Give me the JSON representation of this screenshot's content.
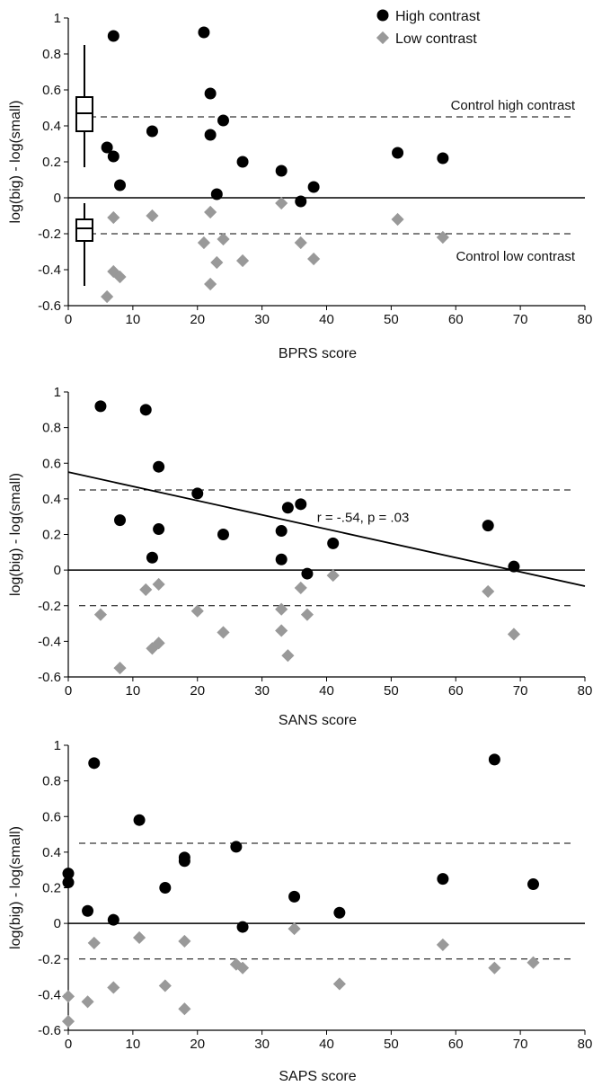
{
  "legend": {
    "high_label": "High contrast",
    "low_label": "Low contrast"
  },
  "colors": {
    "high": "#000000",
    "low": "#999999"
  },
  "chart_data": [
    {
      "type": "scatter",
      "xlabel": "BPRS score",
      "ylabel": "log(big) - log(small)",
      "xlim": [
        0,
        80
      ],
      "ylim": [
        -0.6,
        1
      ],
      "xticks": [
        "0",
        "10",
        "20",
        "30",
        "40",
        "50",
        "60",
        "70",
        "80"
      ],
      "yticks": [
        "-0.6",
        "-0.4",
        "-0.2",
        "0",
        "0.2",
        "0.4",
        "0.6",
        "0.8",
        "1"
      ],
      "reference_lines": [
        {
          "label": "Control high contrast",
          "y": 0.45
        },
        {
          "label": "Control low contrast",
          "y": -0.2
        }
      ],
      "boxplots": [
        {
          "name": "Control high contrast",
          "x": 2.5,
          "min": 0.17,
          "q1": 0.37,
          "median": 0.47,
          "q3": 0.56,
          "max": 0.85
        },
        {
          "name": "Control low contrast",
          "x": 2.5,
          "min": -0.49,
          "q1": -0.24,
          "median": -0.17,
          "q3": -0.12,
          "max": -0.03
        }
      ],
      "series": [
        {
          "name": "High contrast",
          "marker": "circle",
          "points": [
            [
              6,
              0.28
            ],
            [
              7,
              0.23
            ],
            [
              7,
              0.9
            ],
            [
              8,
              0.07
            ],
            [
              13,
              0.37
            ],
            [
              21,
              0.92
            ],
            [
              22,
              0.58
            ],
            [
              22,
              0.35
            ],
            [
              23,
              0.02
            ],
            [
              24,
              0.43
            ],
            [
              27,
              0.2
            ],
            [
              33,
              0.15
            ],
            [
              36,
              -0.02
            ],
            [
              38,
              0.06
            ],
            [
              51,
              0.25
            ],
            [
              58,
              0.22
            ]
          ]
        },
        {
          "name": "Low contrast",
          "marker": "diamond",
          "points": [
            [
              6,
              -0.55
            ],
            [
              7,
              -0.41
            ],
            [
              7,
              -0.11
            ],
            [
              8,
              -0.44
            ],
            [
              13,
              -0.1
            ],
            [
              21,
              -0.25
            ],
            [
              22,
              -0.48
            ],
            [
              22,
              -0.08
            ],
            [
              23,
              -0.36
            ],
            [
              24,
              -0.23
            ],
            [
              27,
              -0.35
            ],
            [
              33,
              -0.03
            ],
            [
              36,
              -0.25
            ],
            [
              38,
              -0.34
            ],
            [
              51,
              -0.12
            ],
            [
              58,
              -0.22
            ]
          ]
        }
      ]
    },
    {
      "type": "scatter",
      "xlabel": "SANS score",
      "ylabel": "log(big) - log(small)",
      "xlim": [
        0,
        80
      ],
      "ylim": [
        -0.6,
        1
      ],
      "xticks": [
        "0",
        "10",
        "20",
        "30",
        "40",
        "50",
        "60",
        "70",
        "80"
      ],
      "yticks": [
        "-0.6",
        "-0.4",
        "-0.2",
        "0",
        "0.2",
        "0.4",
        "0.6",
        "0.8",
        "1"
      ],
      "reference_lines": [
        {
          "label": "",
          "y": 0.45
        },
        {
          "label": "",
          "y": -0.2
        }
      ],
      "regression": {
        "x": [
          0,
          80
        ],
        "y": [
          0.55,
          -0.09
        ],
        "label": "r = -.54, p = .03"
      },
      "series": [
        {
          "name": "High contrast",
          "marker": "circle",
          "points": [
            [
              5,
              0.92
            ],
            [
              8,
              0.28
            ],
            [
              12,
              0.9
            ],
            [
              13,
              0.07
            ],
            [
              14,
              0.58
            ],
            [
              14,
              0.23
            ],
            [
              20,
              0.43
            ],
            [
              24,
              0.2
            ],
            [
              33,
              0.22
            ],
            [
              33,
              0.06
            ],
            [
              34,
              0.35
            ],
            [
              36,
              0.37
            ],
            [
              37,
              -0.02
            ],
            [
              41,
              0.15
            ],
            [
              65,
              0.25
            ],
            [
              69,
              0.02
            ]
          ]
        },
        {
          "name": "Low contrast",
          "marker": "diamond",
          "points": [
            [
              5,
              -0.25
            ],
            [
              8,
              -0.55
            ],
            [
              12,
              -0.11
            ],
            [
              13,
              -0.44
            ],
            [
              14,
              -0.08
            ],
            [
              14,
              -0.41
            ],
            [
              20,
              -0.23
            ],
            [
              24,
              -0.35
            ],
            [
              33,
              -0.22
            ],
            [
              33,
              -0.34
            ],
            [
              34,
              -0.48
            ],
            [
              36,
              -0.1
            ],
            [
              37,
              -0.25
            ],
            [
              41,
              -0.03
            ],
            [
              65,
              -0.12
            ],
            [
              69,
              -0.36
            ]
          ]
        }
      ]
    },
    {
      "type": "scatter",
      "xlabel": "SAPS score",
      "ylabel": "log(big) - log(small)",
      "xlim": [
        0,
        80
      ],
      "ylim": [
        -0.6,
        1
      ],
      "xticks": [
        "0",
        "10",
        "20",
        "30",
        "40",
        "50",
        "60",
        "70",
        "80"
      ],
      "yticks": [
        "-0.6",
        "-0.4",
        "-0.2",
        "0",
        "0.2",
        "0.4",
        "0.6",
        "0.8",
        "1"
      ],
      "reference_lines": [
        {
          "label": "",
          "y": 0.45
        },
        {
          "label": "",
          "y": -0.2
        }
      ],
      "series": [
        {
          "name": "High contrast",
          "marker": "circle",
          "points": [
            [
              0,
              0.28
            ],
            [
              0,
              0.23
            ],
            [
              3,
              0.07
            ],
            [
              4,
              0.9
            ],
            [
              7,
              0.02
            ],
            [
              11,
              0.58
            ],
            [
              15,
              0.2
            ],
            [
              18,
              0.37
            ],
            [
              18,
              0.35
            ],
            [
              26,
              0.43
            ],
            [
              27,
              -0.02
            ],
            [
              35,
              0.15
            ],
            [
              42,
              0.06
            ],
            [
              58,
              0.25
            ],
            [
              66,
              0.92
            ],
            [
              72,
              0.22
            ]
          ]
        },
        {
          "name": "Low contrast",
          "marker": "diamond",
          "points": [
            [
              0,
              -0.41
            ],
            [
              0,
              -0.55
            ],
            [
              3,
              -0.44
            ],
            [
              4,
              -0.11
            ],
            [
              7,
              -0.36
            ],
            [
              11,
              -0.08
            ],
            [
              15,
              -0.35
            ],
            [
              18,
              -0.1
            ],
            [
              18,
              -0.48
            ],
            [
              26,
              -0.23
            ],
            [
              27,
              -0.25
            ],
            [
              35,
              -0.03
            ],
            [
              42,
              -0.34
            ],
            [
              58,
              -0.12
            ],
            [
              66,
              -0.25
            ],
            [
              72,
              -0.22
            ]
          ]
        }
      ]
    }
  ]
}
